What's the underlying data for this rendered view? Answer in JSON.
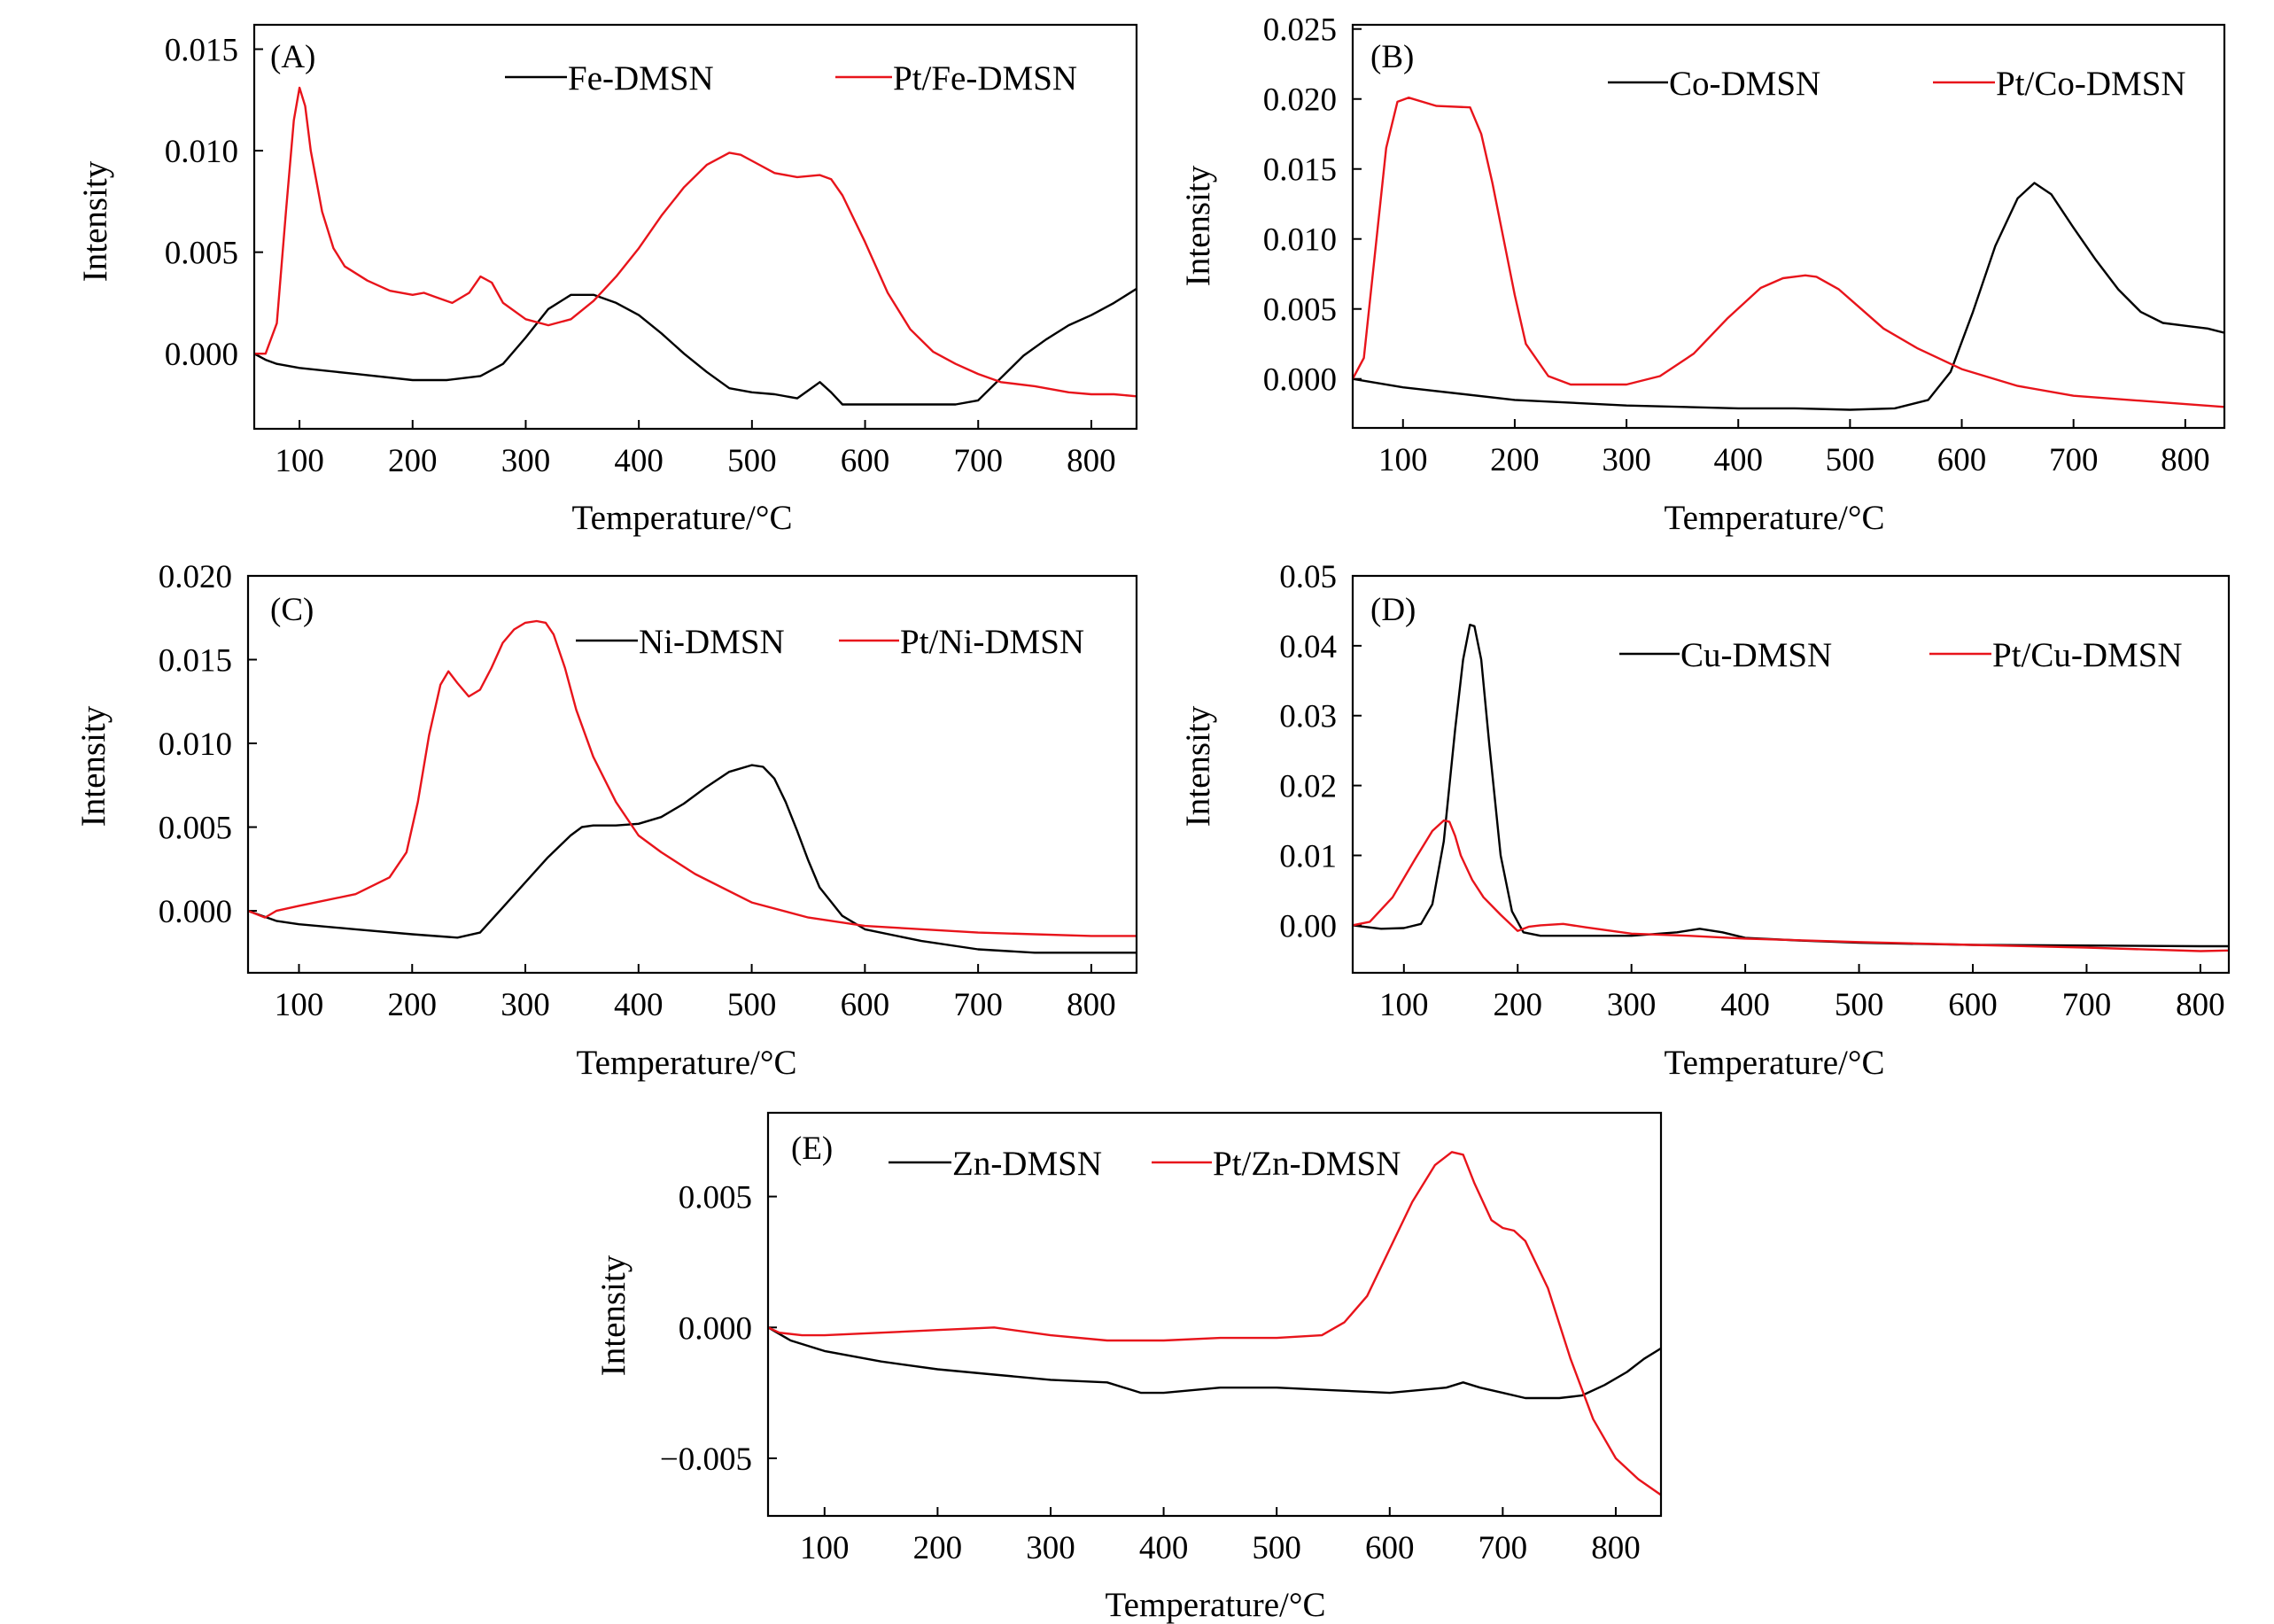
{
  "colors": {
    "black_series": "#000000",
    "red_series": "#e8141b"
  },
  "chart_data": [
    {
      "type": "line",
      "panel_label": "(A)",
      "xlabel": "Temperature/°C",
      "ylabel": "Intensity",
      "xlim": [
        60,
        840
      ],
      "ylim": [
        -0.0037,
        0.0162
      ],
      "x_ticks": [
        100,
        200,
        300,
        400,
        500,
        600,
        700,
        800
      ],
      "y_ticks": [
        0.0,
        0.005,
        0.01,
        0.015
      ],
      "y_tick_labels": [
        "0.000",
        "0.005",
        "0.010",
        "0.015"
      ],
      "series": [
        {
          "name": "Fe-DMSN",
          "color": "#000000",
          "x": [
            60,
            70,
            80,
            100,
            150,
            200,
            230,
            260,
            280,
            300,
            320,
            340,
            360,
            380,
            400,
            420,
            440,
            460,
            480,
            500,
            520,
            540,
            550,
            560,
            570,
            580,
            600,
            650,
            680,
            700,
            720,
            740,
            760,
            780,
            800,
            820,
            840
          ],
          "y": [
            0.0,
            -0.0003,
            -0.0005,
            -0.0007,
            -0.001,
            -0.0013,
            -0.0013,
            -0.0011,
            -0.0005,
            0.0008,
            0.0022,
            0.0029,
            0.0029,
            0.0025,
            0.0019,
            0.001,
            0.0,
            -0.0009,
            -0.0017,
            -0.0019,
            -0.002,
            -0.0022,
            -0.0018,
            -0.0014,
            -0.0019,
            -0.0025,
            -0.0025,
            -0.0025,
            -0.0025,
            -0.0023,
            -0.0012,
            -0.0001,
            0.0007,
            0.0014,
            0.0019,
            0.0025,
            0.0032
          ]
        },
        {
          "name": "Pt/Fe-DMSN",
          "color": "#e8141b",
          "x": [
            60,
            70,
            80,
            88,
            95,
            100,
            105,
            110,
            120,
            130,
            140,
            160,
            180,
            200,
            210,
            220,
            235,
            250,
            260,
            270,
            280,
            300,
            320,
            340,
            360,
            380,
            400,
            420,
            440,
            460,
            480,
            490,
            500,
            520,
            540,
            560,
            570,
            580,
            600,
            620,
            640,
            660,
            680,
            700,
            720,
            750,
            780,
            800,
            820,
            840
          ],
          "y": [
            0.0,
            0.0,
            0.0015,
            0.007,
            0.0115,
            0.0131,
            0.0122,
            0.01,
            0.007,
            0.0052,
            0.0043,
            0.0036,
            0.0031,
            0.0029,
            0.003,
            0.0028,
            0.0025,
            0.003,
            0.0038,
            0.0035,
            0.0025,
            0.0017,
            0.0014,
            0.0017,
            0.0026,
            0.0038,
            0.0052,
            0.0068,
            0.0082,
            0.0093,
            0.0099,
            0.0098,
            0.0095,
            0.0089,
            0.0087,
            0.0088,
            0.0086,
            0.0078,
            0.0055,
            0.003,
            0.0012,
            0.0001,
            -0.0005,
            -0.001,
            -0.0014,
            -0.0016,
            -0.0019,
            -0.002,
            -0.002,
            -0.0021
          ]
        }
      ]
    },
    {
      "type": "line",
      "panel_label": "(B)",
      "xlabel": "Temperature/°C",
      "ylabel": "Intensity",
      "xlim": [
        55,
        835
      ],
      "ylim": [
        -0.0035,
        0.0253
      ],
      "x_ticks": [
        100,
        200,
        300,
        400,
        500,
        600,
        700,
        800
      ],
      "y_ticks": [
        0.0,
        0.005,
        0.01,
        0.015,
        0.02,
        0.025
      ],
      "y_tick_labels": [
        "0.000",
        "0.005",
        "0.010",
        "0.015",
        "0.020",
        "0.025"
      ],
      "series": [
        {
          "name": "Co-DMSN",
          "color": "#000000",
          "x": [
            55,
            100,
            200,
            300,
            400,
            450,
            500,
            540,
            570,
            590,
            610,
            630,
            650,
            665,
            680,
            700,
            720,
            740,
            760,
            780,
            800,
            820,
            835
          ],
          "y": [
            0.0,
            -0.0006,
            -0.0015,
            -0.0019,
            -0.0021,
            -0.0021,
            -0.0022,
            -0.0021,
            -0.0015,
            0.0005,
            0.0048,
            0.0095,
            0.0129,
            0.014,
            0.0132,
            0.0108,
            0.0085,
            0.0064,
            0.0048,
            0.004,
            0.0038,
            0.0036,
            0.0033
          ]
        },
        {
          "name": "Pt/Co-DMSN",
          "color": "#e8141b",
          "x": [
            55,
            65,
            75,
            85,
            95,
            105,
            130,
            160,
            170,
            180,
            190,
            200,
            210,
            230,
            250,
            300,
            330,
            360,
            390,
            420,
            440,
            460,
            470,
            490,
            510,
            530,
            560,
            600,
            650,
            700,
            800,
            835
          ],
          "y": [
            0.0,
            0.0015,
            0.009,
            0.0165,
            0.0198,
            0.0201,
            0.0195,
            0.0194,
            0.0175,
            0.014,
            0.01,
            0.006,
            0.0025,
            0.0002,
            -0.0004,
            -0.0004,
            0.0002,
            0.0018,
            0.0043,
            0.0065,
            0.0072,
            0.0074,
            0.0073,
            0.0064,
            0.005,
            0.0036,
            0.0022,
            0.0007,
            -0.0005,
            -0.0012,
            -0.0018,
            -0.002
          ]
        }
      ]
    },
    {
      "type": "line",
      "panel_label": "(C)",
      "xlabel": "Temperature/°C",
      "ylabel": "Intensity",
      "xlim": [
        55,
        840
      ],
      "ylim": [
        -0.0037,
        0.02
      ],
      "x_ticks": [
        100,
        200,
        300,
        400,
        500,
        600,
        700,
        800
      ],
      "y_ticks": [
        0.0,
        0.005,
        0.01,
        0.015,
        0.02
      ],
      "y_tick_labels": [
        "0.000",
        "0.005",
        "0.010",
        "0.015",
        "0.020"
      ],
      "series": [
        {
          "name": "Ni-DMSN",
          "color": "#000000",
          "x": [
            55,
            80,
            100,
            150,
            200,
            240,
            260,
            280,
            300,
            320,
            340,
            350,
            360,
            380,
            400,
            420,
            440,
            460,
            480,
            500,
            510,
            520,
            530,
            540,
            550,
            560,
            580,
            600,
            650,
            700,
            750,
            800,
            840
          ],
          "y": [
            0.0,
            -0.0006,
            -0.0008,
            -0.0011,
            -0.0014,
            -0.0016,
            -0.0013,
            0.0002,
            0.0017,
            0.0032,
            0.0045,
            0.005,
            0.0051,
            0.0051,
            0.0052,
            0.0056,
            0.0064,
            0.0074,
            0.0083,
            0.0087,
            0.0086,
            0.0079,
            0.0065,
            0.0048,
            0.003,
            0.0014,
            -0.0003,
            -0.0011,
            -0.0018,
            -0.0023,
            -0.0025,
            -0.0025,
            -0.0025
          ]
        },
        {
          "name": "Pt/Ni-DMSN",
          "color": "#e8141b",
          "x": [
            55,
            70,
            80,
            100,
            150,
            180,
            195,
            205,
            215,
            225,
            232,
            240,
            250,
            260,
            270,
            280,
            290,
            300,
            310,
            318,
            325,
            335,
            345,
            360,
            380,
            400,
            420,
            450,
            500,
            550,
            600,
            700,
            800,
            840
          ],
          "y": [
            0.0,
            -0.0004,
            0.0,
            0.0003,
            0.001,
            0.002,
            0.0035,
            0.0065,
            0.0105,
            0.0135,
            0.0143,
            0.0136,
            0.0128,
            0.0132,
            0.0145,
            0.016,
            0.0168,
            0.0172,
            0.0173,
            0.0172,
            0.0165,
            0.0145,
            0.012,
            0.0092,
            0.0065,
            0.0045,
            0.0035,
            0.0022,
            0.0005,
            -0.0004,
            -0.0009,
            -0.0013,
            -0.0015,
            -0.0015
          ]
        }
      ]
    },
    {
      "type": "line",
      "panel_label": "(D)",
      "xlabel": "Temperature/°C",
      "ylabel": "Intensity",
      "xlim": [
        55,
        825
      ],
      "ylim": [
        -0.0068,
        0.05
      ],
      "x_ticks": [
        100,
        200,
        300,
        400,
        500,
        600,
        700,
        800
      ],
      "y_ticks": [
        0.0,
        0.01,
        0.02,
        0.03,
        0.04,
        0.05
      ],
      "y_tick_labels": [
        "0.00",
        "0.01",
        "0.02",
        "0.03",
        "0.04",
        "0.05"
      ],
      "series": [
        {
          "name": "Cu-DMSN",
          "color": "#000000",
          "x": [
            55,
            80,
            100,
            115,
            125,
            135,
            145,
            152,
            158,
            162,
            168,
            175,
            185,
            195,
            205,
            220,
            250,
            300,
            340,
            360,
            380,
            400,
            450,
            500,
            600,
            700,
            800,
            825
          ],
          "y": [
            0.0,
            -0.0005,
            -0.0004,
            0.0002,
            0.003,
            0.012,
            0.028,
            0.038,
            0.043,
            0.0428,
            0.038,
            0.026,
            0.01,
            0.002,
            -0.001,
            -0.0015,
            -0.0015,
            -0.0015,
            -0.001,
            -0.0005,
            -0.001,
            -0.0018,
            -0.0022,
            -0.0025,
            -0.0028,
            -0.0029,
            -0.003,
            -0.003
          ]
        },
        {
          "name": "Pt/Cu-DMSN",
          "color": "#e8141b",
          "x": [
            55,
            70,
            90,
            110,
            125,
            135,
            140,
            145,
            150,
            160,
            170,
            185,
            200,
            210,
            220,
            240,
            260,
            300,
            350,
            400,
            500,
            600,
            700,
            800,
            825
          ],
          "y": [
            0.0,
            0.0005,
            0.004,
            0.0095,
            0.0135,
            0.015,
            0.0148,
            0.0128,
            0.01,
            0.0065,
            0.004,
            0.0015,
            -0.0008,
            -0.0002,
            0.0,
            0.0002,
            -0.0003,
            -0.0012,
            -0.0015,
            -0.0019,
            -0.0024,
            -0.0028,
            -0.0032,
            -0.0037,
            -0.0036
          ]
        }
      ]
    },
    {
      "type": "line",
      "panel_label": "(E)",
      "xlabel": "Temperature/°C",
      "ylabel": "Intensity",
      "xlim": [
        50,
        840
      ],
      "ylim": [
        -0.0072,
        0.0082
      ],
      "x_ticks": [
        100,
        200,
        300,
        400,
        500,
        600,
        700,
        800
      ],
      "y_ticks": [
        -0.005,
        0.0,
        0.005
      ],
      "y_tick_labels": [
        "−0.005",
        "0.000",
        "0.005"
      ],
      "series": [
        {
          "name": "Zn-DMSN",
          "color": "#000000",
          "x": [
            50,
            70,
            100,
            150,
            200,
            250,
            300,
            350,
            380,
            400,
            450,
            500,
            550,
            600,
            650,
            665,
            680,
            700,
            720,
            750,
            770,
            790,
            810,
            825,
            840
          ],
          "y": [
            0.0,
            -0.0005,
            -0.0009,
            -0.0013,
            -0.0016,
            -0.0018,
            -0.002,
            -0.0021,
            -0.0025,
            -0.0025,
            -0.0023,
            -0.0023,
            -0.0024,
            -0.0025,
            -0.0023,
            -0.0021,
            -0.0023,
            -0.0025,
            -0.0027,
            -0.0027,
            -0.0026,
            -0.0022,
            -0.0017,
            -0.0012,
            -0.0008
          ]
        },
        {
          "name": "Pt/Zn-DMSN",
          "color": "#e8141b",
          "x": [
            50,
            60,
            80,
            100,
            150,
            200,
            250,
            300,
            350,
            400,
            450,
            500,
            540,
            560,
            580,
            600,
            620,
            640,
            655,
            665,
            675,
            690,
            700,
            710,
            720,
            740,
            760,
            780,
            800,
            820,
            840
          ],
          "y": [
            0.0,
            -0.0002,
            -0.0003,
            -0.0003,
            -0.0002,
            -0.0001,
            0.0,
            -0.0003,
            -0.0005,
            -0.0005,
            -0.0004,
            -0.0004,
            -0.0003,
            0.0002,
            0.0012,
            0.003,
            0.0048,
            0.0062,
            0.0067,
            0.0066,
            0.0055,
            0.0041,
            0.0038,
            0.0037,
            0.0033,
            0.0015,
            -0.0012,
            -0.0035,
            -0.005,
            -0.0058,
            -0.0064
          ]
        }
      ]
    }
  ]
}
